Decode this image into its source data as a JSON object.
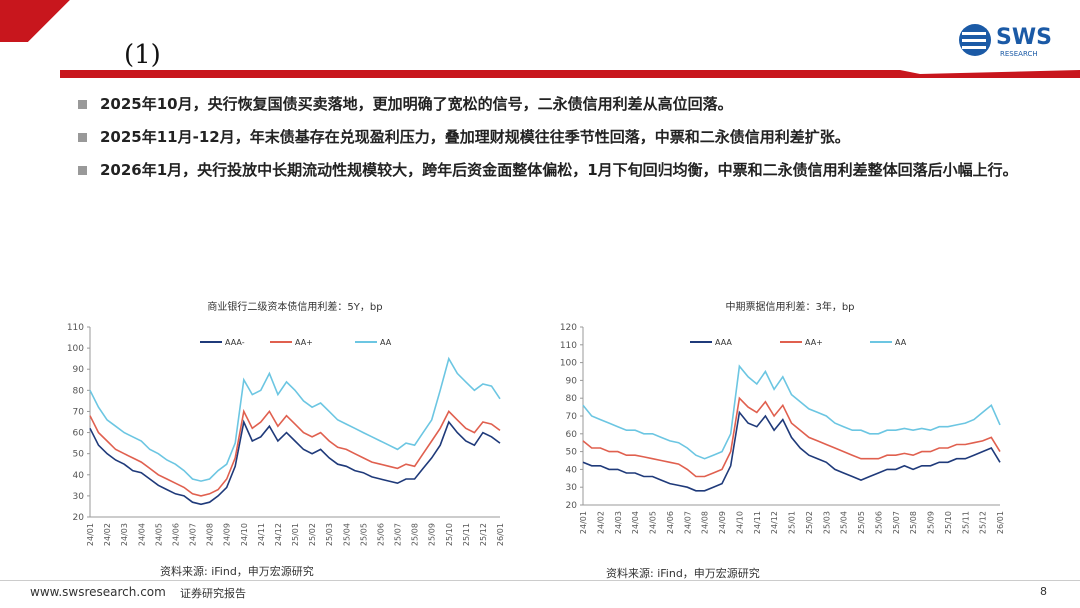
{
  "header": {
    "title": "(1)",
    "logo": "SWS",
    "logo_sub": "RESEARCH"
  },
  "bullets": [
    "2025年10月，央行恢复国债买卖落地，更加明确了宽松的信号，二永债信用利差从高位回落。",
    "2025年11月-12月，年末债基存在兑现盈利压力，叠加理财规模往往季节性回落，中票和二永债信用利差扩张。",
    "2026年1月，央行投放中长期流动性规模较大，跨年后资金面整体偏松，1月下旬回归均衡，中票和二永债信用利差整体回落后小幅上行。"
  ],
  "sources": [
    "资料来源: iFind，申万宏源研究",
    "资料来源: iFind，申万宏源研究"
  ],
  "footer": {
    "url": "www.swsresearch.com",
    "label": "证券研究报告",
    "page": "8"
  },
  "chart_data": [
    {
      "type": "line",
      "title": "商业银行二级资本债信用利差：5Y，bp",
      "categories": [
        "24/01",
        null,
        "24/02",
        null,
        "24/03",
        null,
        "24/04",
        null,
        "24/05",
        null,
        "24/06",
        null,
        "24/07",
        null,
        "24/08",
        null,
        "24/09",
        null,
        "24/10",
        null,
        "24/11",
        null,
        "24/12",
        null,
        "25/01",
        null,
        "25/02",
        null,
        "25/03",
        null,
        "25/04",
        null,
        "25/05",
        null,
        "25/06",
        null,
        "25/07",
        null,
        "25/08",
        null,
        "25/09",
        null,
        "25/10",
        null,
        "25/11",
        null,
        "25/12",
        null,
        "26/01"
      ],
      "ylim": [
        20,
        110
      ],
      "yticks": [
        20,
        30,
        40,
        50,
        60,
        70,
        80,
        90,
        100,
        110
      ],
      "series": [
        {
          "name": "AAA-",
          "color": "#1f3a7a",
          "values": [
            62,
            54,
            50,
            47,
            45,
            42,
            41,
            38,
            35,
            33,
            31,
            30,
            27,
            26,
            27,
            30,
            34,
            44,
            65,
            56,
            58,
            63,
            56,
            60,
            56,
            52,
            50,
            52,
            48,
            45,
            44,
            42,
            41,
            39,
            38,
            37,
            36,
            38,
            38,
            43,
            48,
            54,
            65,
            60,
            56,
            54,
            60,
            58,
            55
          ]
        },
        {
          "name": "AA+",
          "color": "#e0604f",
          "values": [
            68,
            60,
            56,
            52,
            50,
            48,
            46,
            43,
            40,
            38,
            36,
            34,
            31,
            30,
            31,
            33,
            38,
            48,
            70,
            62,
            65,
            70,
            63,
            68,
            64,
            60,
            58,
            60,
            56,
            53,
            52,
            50,
            48,
            46,
            45,
            44,
            43,
            45,
            44,
            50,
            56,
            62,
            70,
            66,
            62,
            60,
            65,
            64,
            61
          ]
        },
        {
          "name": "AA",
          "color": "#6cc6e2",
          "values": [
            80,
            72,
            66,
            63,
            60,
            58,
            56,
            52,
            50,
            47,
            45,
            42,
            38,
            37,
            38,
            42,
            45,
            55,
            85,
            78,
            80,
            88,
            78,
            84,
            80,
            75,
            72,
            74,
            70,
            66,
            64,
            62,
            60,
            58,
            56,
            54,
            52,
            55,
            54,
            60,
            66,
            80,
            95,
            88,
            84,
            80,
            83,
            82,
            76
          ]
        }
      ]
    },
    {
      "type": "line",
      "title": "中期票据信用利差：3年，bp",
      "categories": [
        "24/01",
        null,
        "24/02",
        null,
        "24/03",
        null,
        "24/04",
        null,
        "24/05",
        null,
        "24/06",
        null,
        "24/07",
        null,
        "24/08",
        null,
        "24/09",
        null,
        "24/10",
        null,
        "24/11",
        null,
        "24/12",
        null,
        "25/01",
        null,
        "25/02",
        null,
        "25/03",
        null,
        "25/04",
        null,
        "25/05",
        null,
        "25/06",
        null,
        "25/07",
        null,
        "25/08",
        null,
        "25/09",
        null,
        "25/10",
        null,
        "25/11",
        null,
        "25/12",
        null,
        "26/01"
      ],
      "ylim": [
        20,
        120
      ],
      "yticks": [
        20,
        30,
        40,
        50,
        60,
        70,
        80,
        90,
        100,
        110,
        120
      ],
      "series": [
        {
          "name": "AAA",
          "color": "#1f3a7a",
          "values": [
            44,
            42,
            42,
            40,
            40,
            38,
            38,
            36,
            36,
            34,
            32,
            31,
            30,
            28,
            28,
            30,
            32,
            42,
            72,
            66,
            64,
            70,
            62,
            68,
            58,
            52,
            48,
            46,
            44,
            40,
            38,
            36,
            34,
            36,
            38,
            40,
            40,
            42,
            40,
            42,
            42,
            44,
            44,
            46,
            46,
            48,
            50,
            52,
            44
          ]
        },
        {
          "name": "AA+",
          "color": "#e0604f",
          "values": [
            56,
            52,
            52,
            50,
            50,
            48,
            48,
            47,
            46,
            45,
            44,
            43,
            40,
            36,
            36,
            38,
            40,
            50,
            80,
            75,
            72,
            78,
            70,
            76,
            66,
            62,
            58,
            56,
            54,
            52,
            50,
            48,
            46,
            46,
            46,
            48,
            48,
            49,
            48,
            50,
            50,
            52,
            52,
            54,
            54,
            55,
            56,
            58,
            50
          ]
        },
        {
          "name": "AA",
          "color": "#6cc6e2",
          "values": [
            76,
            70,
            68,
            66,
            64,
            62,
            62,
            60,
            60,
            58,
            56,
            55,
            52,
            48,
            46,
            48,
            50,
            60,
            98,
            92,
            88,
            95,
            85,
            92,
            82,
            78,
            74,
            72,
            70,
            66,
            64,
            62,
            62,
            60,
            60,
            62,
            62,
            63,
            62,
            63,
            62,
            64,
            64,
            65,
            66,
            68,
            72,
            76,
            65
          ]
        }
      ]
    }
  ]
}
